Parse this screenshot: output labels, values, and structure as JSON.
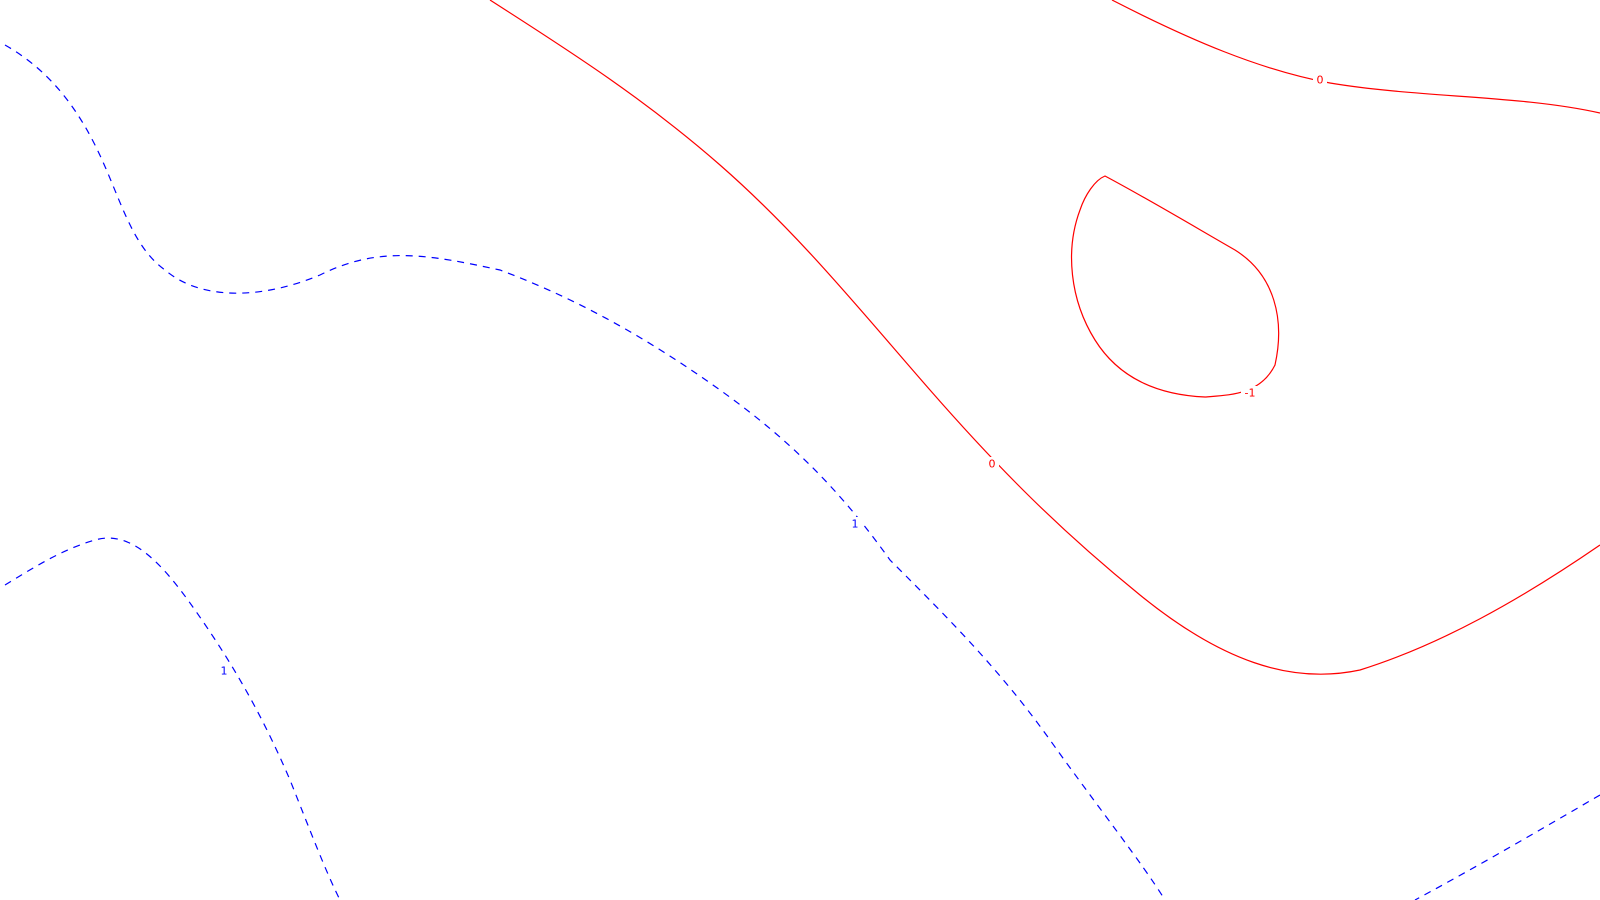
{
  "colors": {
    "background": "#ffffff",
    "positive_contour": "#0000ff",
    "negative_contour": "#ff0000"
  },
  "contours": [
    {
      "level": "1",
      "style": "dashed",
      "color": "#0000ff"
    },
    {
      "level": "1",
      "style": "dashed",
      "color": "#0000ff"
    },
    {
      "level": "1",
      "style": "dashed",
      "color": "#0000ff"
    },
    {
      "level": "0",
      "style": "solid",
      "color": "#ff0000"
    },
    {
      "level": "0",
      "style": "solid",
      "color": "#ff0000"
    },
    {
      "level": "-1",
      "style": "solid",
      "color": "#ff0000"
    }
  ],
  "labels": {
    "blue_upper": "1",
    "blue_lower": "1",
    "red_main": "0",
    "red_top": "0",
    "red_loop": "-1"
  }
}
